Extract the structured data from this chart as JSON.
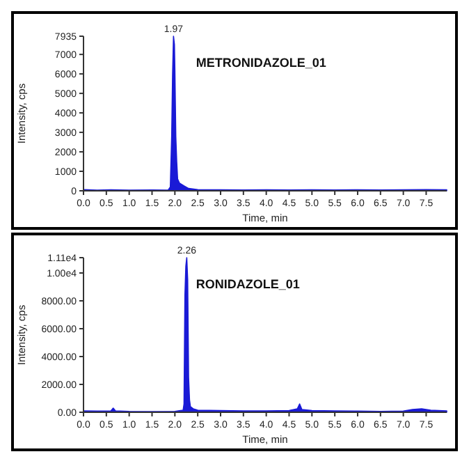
{
  "chart_data": [
    {
      "type": "area",
      "title": "METRONIDAZOLE_01",
      "xlabel": "Time, min",
      "ylabel": "Intensity, cps",
      "xlim": [
        0,
        7.95
      ],
      "xticks": [
        {
          "value": 0,
          "label": "0.0"
        },
        0.5,
        {
          "value": 1,
          "label": "1.0"
        },
        1.5,
        {
          "value": 2,
          "label": "2.0"
        },
        2.5,
        {
          "value": 3,
          "label": "3.0"
        },
        3.5,
        {
          "value": 4,
          "label": "4.0"
        },
        4.5,
        {
          "value": 5,
          "label": "5.0"
        },
        5.5,
        {
          "value": 6,
          "label": "6.0"
        },
        6.5,
        {
          "value": 7,
          "label": "7.0"
        },
        7.5
      ],
      "ylim": [
        0,
        7935
      ],
      "yticks": [
        0,
        1000,
        2000,
        3000,
        4000,
        5000,
        6000,
        7000,
        7935
      ],
      "annotations": [
        {
          "text": "1.97",
          "x": 1.97,
          "y": 7935
        }
      ],
      "series": [
        {
          "color": "#1a1ad6",
          "x": [
            0,
            0.3,
            0.6,
            1.0,
            1.5,
            1.85,
            1.9,
            1.93,
            1.95,
            1.97,
            1.99,
            2.0,
            2.02,
            2.04,
            2.06,
            2.1,
            2.2,
            2.3,
            2.5,
            3.0,
            3.5,
            4.0,
            4.5,
            5.0,
            5.5,
            6.0,
            6.5,
            7.0,
            7.5,
            7.95
          ],
          "values": [
            60,
            30,
            50,
            30,
            40,
            30,
            200,
            2800,
            6000,
            7935,
            7500,
            6200,
            2800,
            1500,
            600,
            400,
            250,
            120,
            60,
            50,
            40,
            50,
            40,
            50,
            40,
            50,
            40,
            50,
            60,
            50
          ]
        }
      ]
    },
    {
      "type": "area",
      "title": "RONIDAZOLE_01",
      "xlabel": "Time, min",
      "ylabel": "Intensity, cps",
      "xlim": [
        0,
        7.95
      ],
      "xticks": [
        {
          "value": 0,
          "label": "0.0"
        },
        0.5,
        {
          "value": 1,
          "label": "1.0"
        },
        1.5,
        {
          "value": 2,
          "label": "2.0"
        },
        2.5,
        {
          "value": 3,
          "label": "3.0"
        },
        3.5,
        {
          "value": 4,
          "label": "4.0"
        },
        4.5,
        {
          "value": 5,
          "label": "5.0"
        },
        5.5,
        {
          "value": 6,
          "label": "6.0"
        },
        6.5,
        {
          "value": 7,
          "label": "7.0"
        },
        7.5
      ],
      "ylim": [
        0,
        11100
      ],
      "yticks": [
        {
          "value": 0,
          "label": "0.00"
        },
        {
          "value": 2000,
          "label": "2000.00"
        },
        {
          "value": 4000,
          "label": "4000.00"
        },
        {
          "value": 6000,
          "label": "6000.00"
        },
        {
          "value": 8000,
          "label": "8000.00"
        },
        {
          "value": 10000,
          "label": "1.00e4"
        },
        {
          "value": 11100,
          "label": "1.11e4"
        }
      ],
      "annotations": [
        {
          "text": "2.26",
          "x": 2.26,
          "y": 11100
        }
      ],
      "series": [
        {
          "color": "#1a1ad6",
          "x": [
            0,
            0.3,
            0.6,
            0.65,
            0.7,
            1.0,
            1.5,
            2.0,
            2.18,
            2.2,
            2.22,
            2.24,
            2.26,
            2.28,
            2.3,
            2.32,
            2.34,
            2.4,
            2.5,
            3.0,
            3.5,
            4.0,
            4.5,
            4.68,
            4.73,
            4.78,
            5.0,
            5.5,
            6.0,
            6.5,
            7.0,
            7.2,
            7.4,
            7.6,
            7.95
          ],
          "values": [
            100,
            80,
            100,
            300,
            100,
            60,
            50,
            60,
            150,
            600,
            8400,
            10500,
            11100,
            9500,
            2500,
            900,
            400,
            250,
            150,
            120,
            100,
            100,
            120,
            250,
            600,
            200,
            120,
            100,
            80,
            60,
            80,
            200,
            250,
            150,
            100
          ]
        }
      ]
    }
  ]
}
